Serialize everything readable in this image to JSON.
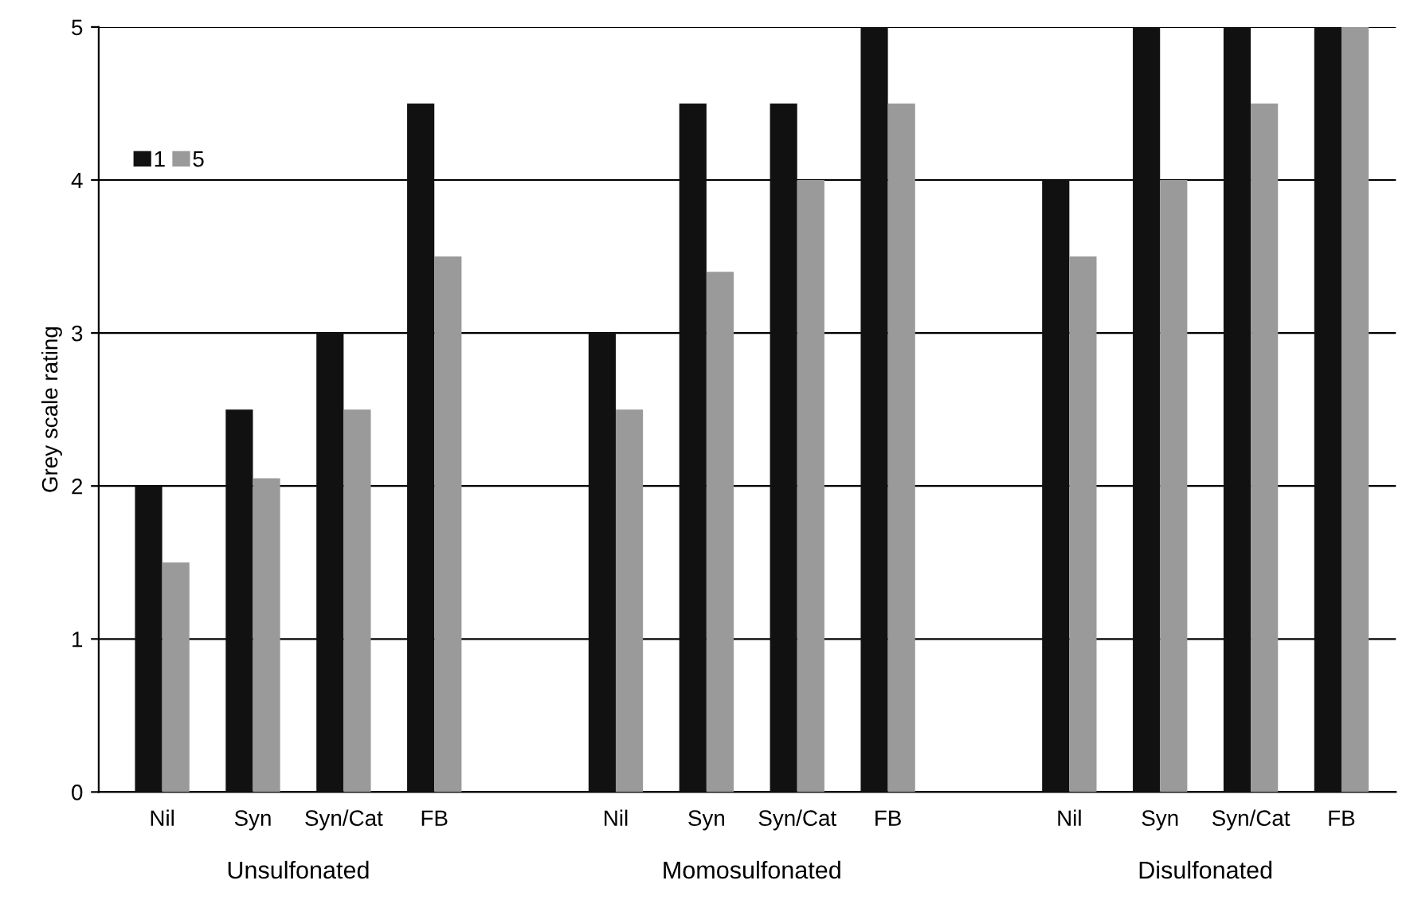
{
  "chart_data": {
    "type": "bar",
    "ylabel": "Grey scale rating",
    "categories": [
      "Nil",
      "Syn",
      "Syn/Cat",
      "FB",
      null,
      "Nil",
      "Syn",
      "Syn/Cat",
      "FB",
      null,
      "Nil",
      "Syn",
      "Syn/Cat",
      "FB"
    ],
    "series": [
      {
        "name": "1",
        "color": "#111111",
        "values": [
          2,
          2.5,
          3,
          4.5,
          null,
          3,
          4.5,
          4.5,
          5,
          null,
          4,
          5,
          5,
          5
        ]
      },
      {
        "name": "5",
        "color": "#9a9a9a",
        "values": [
          1.5,
          2.05,
          2.5,
          3.5,
          null,
          2.5,
          3.4,
          4,
          4.5,
          null,
          3.5,
          4,
          4.5,
          5
        ]
      }
    ],
    "ylim": [
      0,
      5
    ],
    "yticks": [
      0,
      1,
      2,
      3,
      4,
      5
    ],
    "grid": "y",
    "legend": "top left",
    "annotations": [
      "Unsulfonated",
      "Momosulfonated",
      "Disulfonated"
    ]
  }
}
